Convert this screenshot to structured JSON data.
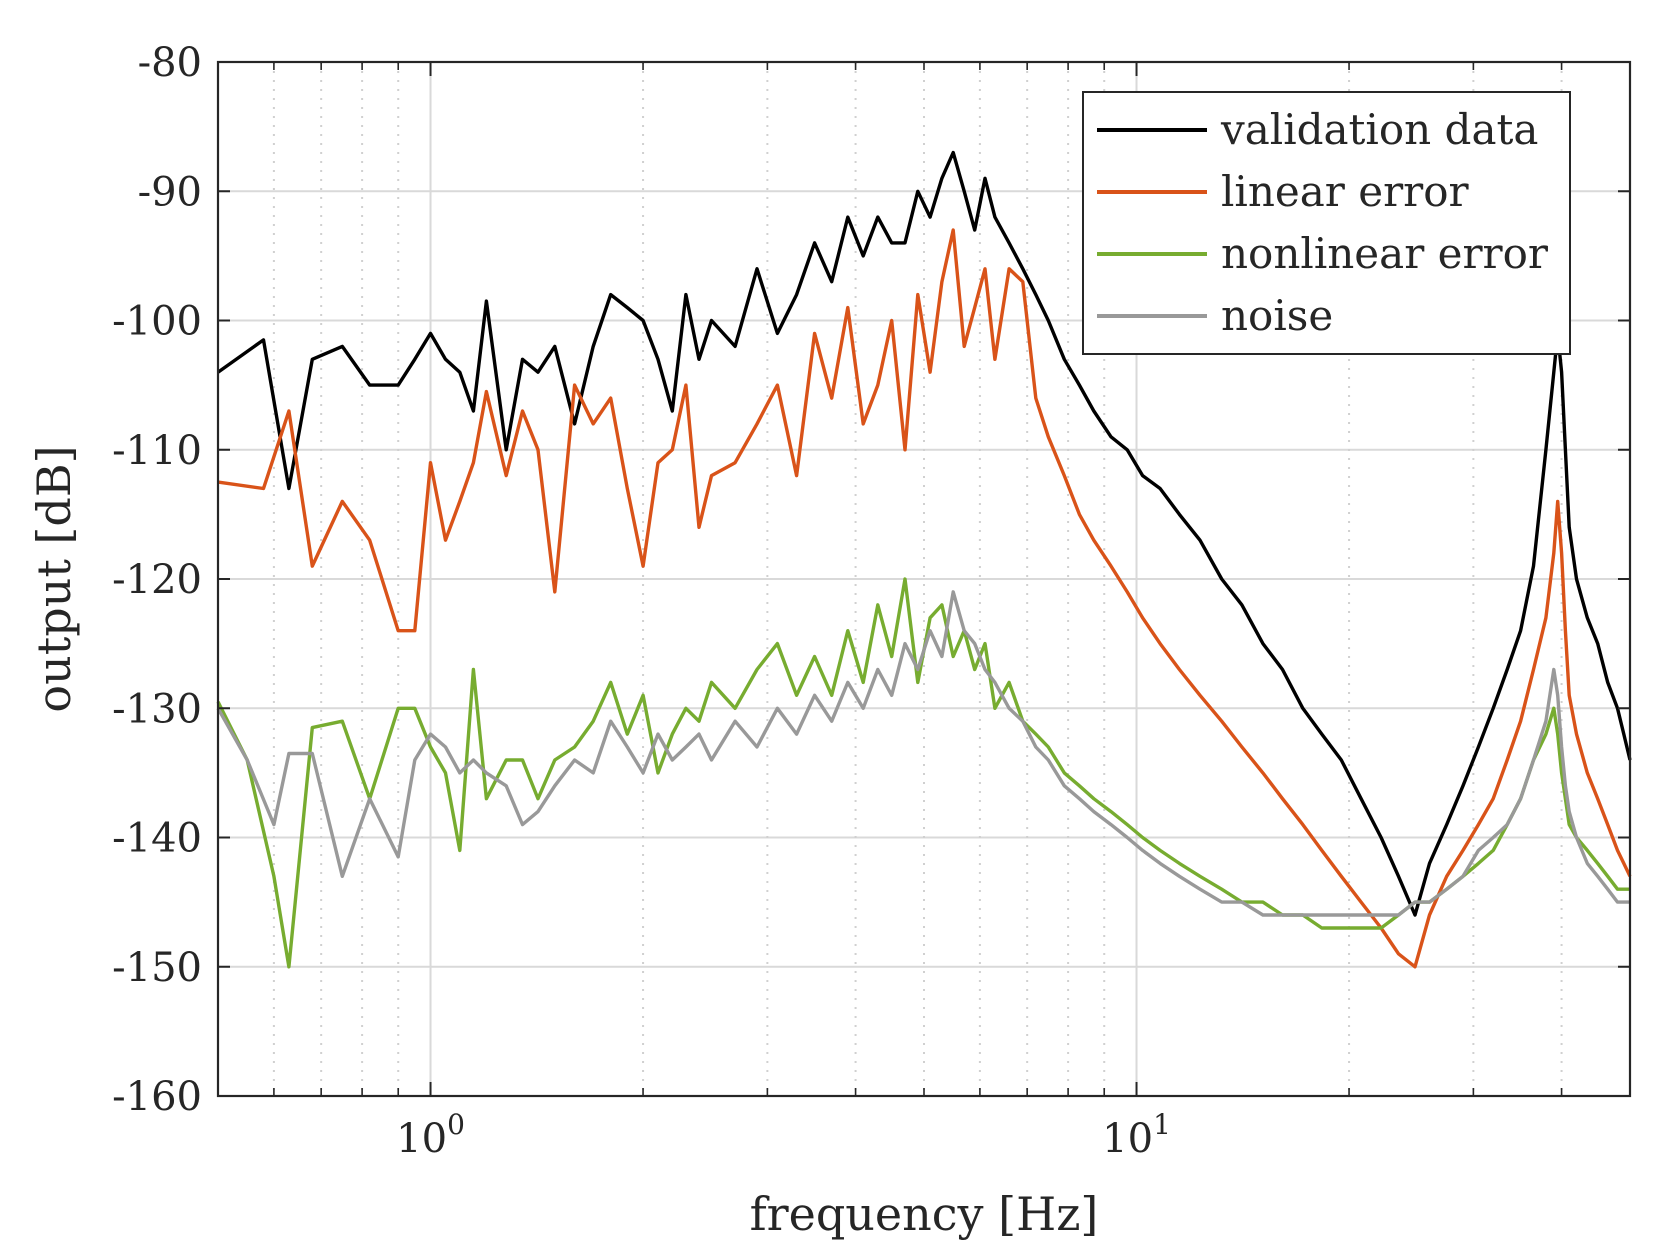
{
  "chart_data": {
    "type": "line",
    "xlabel": "frequency [Hz]",
    "ylabel": "output [dB]",
    "xscale": "log",
    "xlim": [
      0.5,
      50
    ],
    "ylim": [
      -160,
      -80
    ],
    "yticks": [
      -80,
      -90,
      -100,
      -110,
      -120,
      -130,
      -140,
      -150,
      -160
    ],
    "ytick_labels": [
      "-80",
      "-90",
      "-100",
      "-110",
      "-120",
      "-130",
      "-140",
      "-150",
      "-160"
    ],
    "xtick_labels": [
      {
        "value": 1,
        "base": "10",
        "exponent": "0"
      },
      {
        "value": 10,
        "base": "10",
        "exponent": "1"
      }
    ],
    "grid": true,
    "legend_position": "top-right",
    "series": [
      {
        "name": "validation data",
        "color": "#000000",
        "x": [
          0.5,
          0.58,
          0.63,
          0.68,
          0.75,
          0.82,
          0.9,
          0.95,
          1.0,
          1.05,
          1.1,
          1.15,
          1.2,
          1.28,
          1.35,
          1.42,
          1.5,
          1.6,
          1.7,
          1.8,
          1.9,
          2.0,
          2.1,
          2.2,
          2.3,
          2.4,
          2.5,
          2.7,
          2.9,
          3.1,
          3.3,
          3.5,
          3.7,
          3.9,
          4.1,
          4.3,
          4.5,
          4.7,
          4.9,
          5.1,
          5.3,
          5.5,
          5.7,
          5.9,
          6.1,
          6.3,
          6.6,
          6.9,
          7.2,
          7.5,
          7.9,
          8.3,
          8.7,
          9.2,
          9.7,
          10.2,
          10.8,
          11.5,
          12.3,
          13.2,
          14.1,
          15.1,
          16.1,
          17.2,
          18.3,
          19.5,
          20.8,
          22.2,
          23.5,
          24.8,
          26.0,
          27.5,
          29.0,
          30.5,
          32.0,
          33.5,
          35.0,
          36.5,
          38.0,
          39.0,
          39.5,
          40.0,
          40.5,
          41.0,
          42.0,
          43.5,
          45.0,
          46.5,
          48.0,
          49.0,
          50.0
        ],
        "y": [
          -104,
          -101.5,
          -113,
          -103,
          -102,
          -105,
          -105,
          -103,
          -101,
          -103,
          -104,
          -107,
          -98.5,
          -110,
          -103,
          -104,
          -102,
          -108,
          -102,
          -98,
          -99,
          -100,
          -103,
          -107,
          -98,
          -103,
          -100,
          -102,
          -96,
          -101,
          -98,
          -94,
          -97,
          -92,
          -95,
          -92,
          -94,
          -94,
          -90,
          -92,
          -89,
          -87,
          -90,
          -93,
          -89,
          -92,
          -94,
          -96,
          -98,
          -100,
          -103,
          -105,
          -107,
          -109,
          -110,
          -112,
          -113,
          -115,
          -117,
          -120,
          -122,
          -125,
          -127,
          -130,
          -132,
          -134,
          -137,
          -140,
          -143,
          -146,
          -142,
          -139,
          -136,
          -133,
          -130,
          -127,
          -124,
          -119,
          -110,
          -104,
          -101,
          -104,
          -110,
          -116,
          -120,
          -123,
          -125,
          -128,
          -130,
          -132,
          -134
        ]
      },
      {
        "name": "linear error",
        "color": "#d95319",
        "x": [
          0.5,
          0.58,
          0.63,
          0.68,
          0.75,
          0.82,
          0.9,
          0.95,
          1.0,
          1.05,
          1.1,
          1.15,
          1.2,
          1.28,
          1.35,
          1.42,
          1.5,
          1.6,
          1.7,
          1.8,
          1.9,
          2.0,
          2.1,
          2.2,
          2.3,
          2.4,
          2.5,
          2.7,
          2.9,
          3.1,
          3.3,
          3.5,
          3.7,
          3.9,
          4.1,
          4.3,
          4.5,
          4.7,
          4.9,
          5.1,
          5.3,
          5.5,
          5.7,
          5.9,
          6.1,
          6.3,
          6.6,
          6.9,
          7.2,
          7.5,
          7.9,
          8.3,
          8.7,
          9.2,
          9.7,
          10.2,
          10.8,
          11.5,
          12.3,
          13.2,
          14.1,
          15.1,
          16.1,
          17.2,
          18.3,
          19.5,
          20.8,
          22.2,
          23.5,
          24.8,
          26.0,
          27.5,
          29.0,
          30.5,
          32.0,
          33.5,
          35.0,
          36.5,
          38.0,
          39.0,
          39.5,
          40.0,
          40.5,
          41.0,
          42.0,
          43.5,
          45.0,
          46.5,
          48.0,
          49.0,
          50.0
        ],
        "y": [
          -112.5,
          -113,
          -107,
          -119,
          -114,
          -117,
          -124,
          -124,
          -111,
          -117,
          -114,
          -111,
          -105.5,
          -112,
          -107,
          -110,
          -121,
          -105,
          -108,
          -106,
          -113,
          -119,
          -111,
          -110,
          -105,
          -116,
          -112,
          -111,
          -108,
          -105,
          -112,
          -101,
          -106,
          -99,
          -108,
          -105,
          -100,
          -110,
          -98,
          -104,
          -97,
          -93,
          -102,
          -99,
          -96,
          -103,
          -96,
          -97,
          -106,
          -109,
          -112,
          -115,
          -117,
          -119,
          -121,
          -123,
          -125,
          -127,
          -129,
          -131,
          -133,
          -135,
          -137,
          -139,
          -141,
          -143,
          -145,
          -147,
          -149,
          -150,
          -146,
          -143,
          -141,
          -139,
          -137,
          -134,
          -131,
          -127,
          -123,
          -118,
          -114,
          -118,
          -124,
          -129,
          -132,
          -135,
          -137,
          -139,
          -141,
          -142,
          -143
        ]
      },
      {
        "name": "nonlinear error",
        "color": "#77ac30",
        "x": [
          0.5,
          0.55,
          0.6,
          0.63,
          0.68,
          0.75,
          0.82,
          0.9,
          0.95,
          1.0,
          1.05,
          1.1,
          1.15,
          1.2,
          1.28,
          1.35,
          1.42,
          1.5,
          1.6,
          1.7,
          1.8,
          1.9,
          2.0,
          2.1,
          2.2,
          2.3,
          2.4,
          2.5,
          2.7,
          2.9,
          3.1,
          3.3,
          3.5,
          3.7,
          3.9,
          4.1,
          4.3,
          4.5,
          4.7,
          4.9,
          5.1,
          5.3,
          5.5,
          5.7,
          5.9,
          6.1,
          6.3,
          6.6,
          6.9,
          7.2,
          7.5,
          7.9,
          8.3,
          8.7,
          9.2,
          9.7,
          10.2,
          10.8,
          11.5,
          12.3,
          13.2,
          14.1,
          15.1,
          16.1,
          17.2,
          18.3,
          19.5,
          20.8,
          22.2,
          23.5,
          24.8,
          26.0,
          27.5,
          29.0,
          30.5,
          32.0,
          33.5,
          35.0,
          36.5,
          38.0,
          39.0,
          39.5,
          40.0,
          40.5,
          41.0,
          42.0,
          43.5,
          45.0,
          46.5,
          48.0,
          49.0,
          50.0
        ],
        "y": [
          -129.5,
          -134,
          -143,
          -150,
          -131.5,
          -131,
          -137,
          -130,
          -130,
          -133,
          -135,
          -141,
          -127,
          -137,
          -134,
          -134,
          -137,
          -134,
          -133,
          -131,
          -128,
          -132,
          -129,
          -135,
          -132,
          -130,
          -131,
          -128,
          -130,
          -127,
          -125,
          -129,
          -126,
          -129,
          -124,
          -128,
          -122,
          -126,
          -120,
          -128,
          -123,
          -122,
          -126,
          -124,
          -127,
          -125,
          -130,
          -128,
          -131,
          -132,
          -133,
          -135,
          -136,
          -137,
          -138,
          -139,
          -140,
          -141,
          -142,
          -143,
          -144,
          -145,
          -145,
          -146,
          -146,
          -147,
          -147,
          -147,
          -147,
          -146,
          -145,
          -145,
          -144,
          -143,
          -142,
          -141,
          -139,
          -137,
          -134,
          -132,
          -130,
          -132,
          -135,
          -137,
          -139,
          -140,
          -141,
          -142,
          -143,
          -144,
          -144,
          -144
        ]
      },
      {
        "name": "noise",
        "color": "#999999",
        "x": [
          0.5,
          0.55,
          0.6,
          0.63,
          0.68,
          0.75,
          0.82,
          0.9,
          0.95,
          1.0,
          1.05,
          1.1,
          1.15,
          1.2,
          1.28,
          1.35,
          1.42,
          1.5,
          1.6,
          1.7,
          1.8,
          1.9,
          2.0,
          2.1,
          2.2,
          2.3,
          2.4,
          2.5,
          2.7,
          2.9,
          3.1,
          3.3,
          3.5,
          3.7,
          3.9,
          4.1,
          4.3,
          4.5,
          4.7,
          4.9,
          5.1,
          5.3,
          5.5,
          5.7,
          5.9,
          6.1,
          6.3,
          6.6,
          6.9,
          7.2,
          7.5,
          7.9,
          8.3,
          8.7,
          9.2,
          9.7,
          10.2,
          10.8,
          11.5,
          12.3,
          13.2,
          14.1,
          15.1,
          16.1,
          17.2,
          18.3,
          19.5,
          20.8,
          22.2,
          23.5,
          24.8,
          26.0,
          27.5,
          29.0,
          30.5,
          32.0,
          33.5,
          35.0,
          36.5,
          38.0,
          39.0,
          39.5,
          40.0,
          40.5,
          41.0,
          42.0,
          43.5,
          45.0,
          46.5,
          48.0,
          49.0,
          50.0
        ],
        "y": [
          -130,
          -134,
          -139,
          -133.5,
          -133.5,
          -143,
          -137,
          -141.5,
          -134,
          -132,
          -133,
          -135,
          -134,
          -135,
          -136,
          -139,
          -138,
          -136,
          -134,
          -135,
          -131,
          -133,
          -135,
          -132,
          -134,
          -133,
          -132,
          -134,
          -131,
          -133,
          -130,
          -132,
          -129,
          -131,
          -128,
          -130,
          -127,
          -129,
          -125,
          -127,
          -124,
          -126,
          -121,
          -124,
          -125,
          -127,
          -128,
          -130,
          -131,
          -133,
          -134,
          -136,
          -137,
          -138,
          -139,
          -140,
          -141,
          -142,
          -143,
          -144,
          -145,
          -145,
          -146,
          -146,
          -146,
          -146,
          -146,
          -146,
          -146,
          -146,
          -145,
          -145,
          -144,
          -143,
          -141,
          -140,
          -139,
          -137,
          -134,
          -131,
          -127,
          -129,
          -133,
          -136,
          -138,
          -140,
          -142,
          -143,
          -144,
          -145,
          -145,
          -145
        ]
      }
    ]
  }
}
